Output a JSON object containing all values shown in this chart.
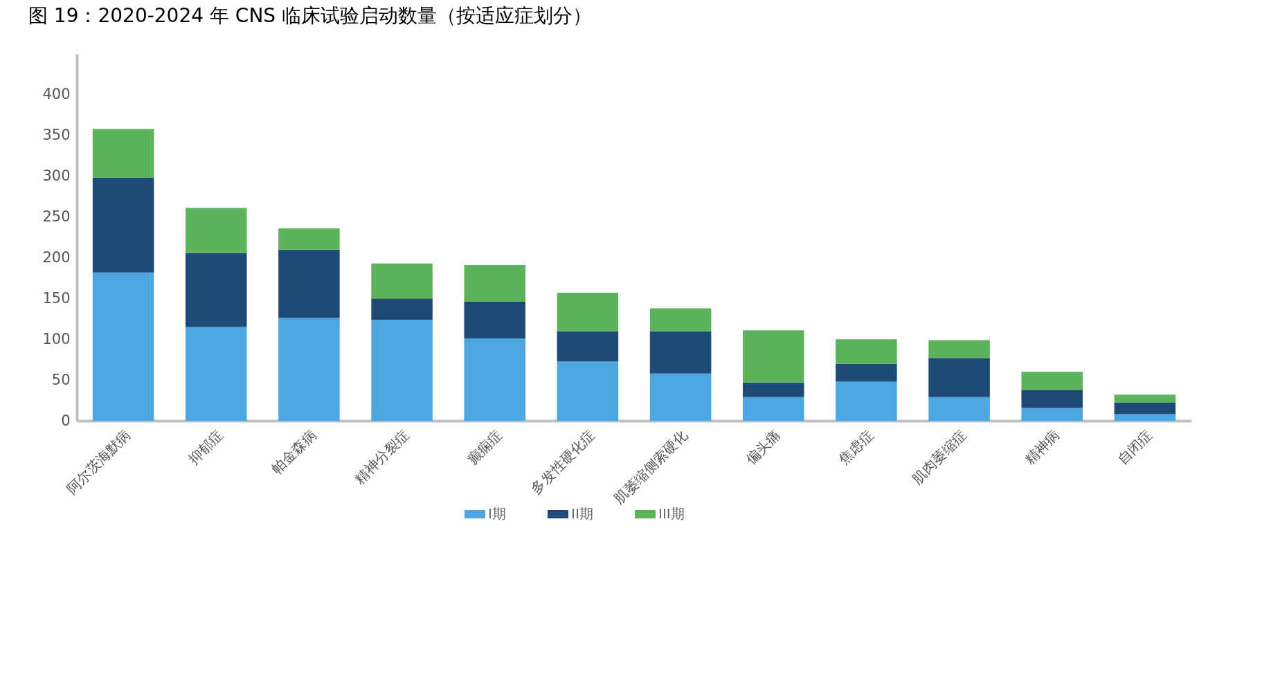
{
  "chart_data": {
    "type": "bar",
    "title": "图 19：2020-2024 年 CNS 临床试验启动数量（按适应症划分）",
    "categories": [
      "阿尔茨海默病",
      "抑郁症",
      "帕金森病",
      "精神分裂症",
      "癫痫症",
      "多发性硬化症",
      "肌萎缩侧索硬化",
      "偏头痛",
      "焦虑症",
      "肌肉萎缩症",
      "精神病",
      "自闭症"
    ],
    "stacked": true,
    "series": [
      {
        "name": "I期",
        "color": "#4da6df",
        "values": [
          182,
          115,
          126,
          124,
          101,
          73,
          58,
          29,
          48,
          29,
          16,
          8
        ]
      },
      {
        "name": "II期",
        "color": "#1f4a78",
        "values": [
          116,
          91,
          84,
          26,
          45,
          37,
          52,
          18,
          22,
          48,
          22,
          14
        ]
      },
      {
        "name": "III期",
        "color": "#5cb35a",
        "values": [
          60,
          55,
          26,
          43,
          45,
          47,
          28,
          64,
          30,
          22,
          22,
          10
        ]
      }
    ],
    "ylim": [
      0,
      450
    ],
    "yticks": [
      0,
      50,
      100,
      150,
      200,
      250,
      300,
      350,
      400
    ],
    "grid": false,
    "legend": "bottom"
  }
}
